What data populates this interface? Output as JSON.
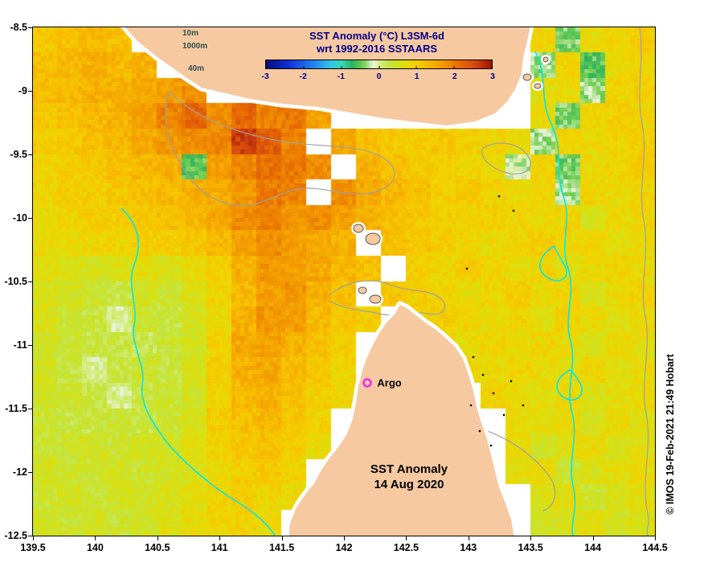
{
  "figure": {
    "legend_title_line1": "SST Anomaly (°C) L3SM-6d",
    "legend_title_line2": "wrt 1992-2016 SSTAARS",
    "annotation_title_line1": "SST Anomaly",
    "annotation_title_line2": "14 Aug 2020",
    "copyright": "© IMOS 19-Feb-2021 21:49 Hobart",
    "depth_labels": {
      "d10": "10m",
      "d1000": "1000m",
      "d40": "40m"
    }
  },
  "colors": {
    "land": "#f6c9a0",
    "coastline": "#5a5a5a",
    "title": "#00008b",
    "argo_marker": "#ff00ff",
    "contour_cyan": "#00e5ee",
    "contour_gray": "#a0a0a0",
    "missing_data": "#ffffff"
  },
  "chart_data": {
    "type": "heatmap",
    "title": "SST Anomaly (°C) L3SM-6d wrt 1992-2016 SSTAARS",
    "date": "14 Aug 2020",
    "xlim": [
      139.5,
      144.5
    ],
    "ylim": [
      -12.5,
      -8.5
    ],
    "x_ticks": [
      "139.5",
      "140",
      "140.5",
      "141",
      "141.5",
      "142",
      "142.5",
      "143",
      "143.5",
      "144",
      "144.5"
    ],
    "y_ticks": [
      "-8.5",
      "-9",
      "-9.5",
      "-10",
      "-10.5",
      "-11",
      "-11.5",
      "-12",
      "-12.5"
    ],
    "colorbar": {
      "ticks": [
        -3,
        -2,
        -1,
        0,
        1,
        2,
        3
      ],
      "stops": [
        [
          -3.0,
          "#0a0a78"
        ],
        [
          -2.4,
          "#1030d8"
        ],
        [
          -1.8,
          "#1f7af0"
        ],
        [
          -1.3,
          "#2fc0e8"
        ],
        [
          -1.0,
          "#35d8b8"
        ],
        [
          -0.7,
          "#2bb060"
        ],
        [
          -0.4,
          "#74cf52"
        ],
        [
          -0.15,
          "#e9f3da"
        ],
        [
          0.0,
          "#d8ed8a"
        ],
        [
          0.3,
          "#c2e43c"
        ],
        [
          0.6,
          "#d8e012"
        ],
        [
          0.9,
          "#f0d400"
        ],
        [
          1.2,
          "#f7c100"
        ],
        [
          1.5,
          "#f5a800"
        ],
        [
          1.8,
          "#f08f00"
        ],
        [
          2.1,
          "#e86f00"
        ],
        [
          2.5,
          "#d84a10"
        ],
        [
          3.0,
          "#9c1500"
        ]
      ]
    },
    "annotations": [
      {
        "label": "Argo",
        "lon": 142.19,
        "lat": -11.3,
        "marker": "circle",
        "color": "#ff00ff"
      }
    ],
    "grid": {
      "nx": 25,
      "ny": 20,
      "lon_min": 139.5,
      "lon_max": 144.5,
      "lat_min": -12.5,
      "lat_max": -8.5,
      "note": "SST anomaly (deg C), row 0 = northernmost (-8.5); null = land / missing data (white)",
      "values": [
        [
          1.1,
          1.2,
          1.3,
          1.2,
          null,
          null,
          null,
          null,
          null,
          null,
          null,
          null,
          null,
          null,
          null,
          null,
          null,
          null,
          null,
          null,
          0.9,
          -0.4,
          0.8,
          0.9,
          1.0
        ],
        [
          1.2,
          1.3,
          1.4,
          1.3,
          1.4,
          null,
          null,
          null,
          null,
          null,
          null,
          null,
          null,
          null,
          null,
          null,
          null,
          null,
          null,
          null,
          -0.3,
          0.9,
          -0.5,
          0.8,
          0.9
        ],
        [
          1.2,
          1.3,
          1.4,
          1.4,
          1.5,
          1.6,
          1.8,
          null,
          null,
          null,
          null,
          null,
          null,
          null,
          null,
          null,
          null,
          null,
          null,
          null,
          0.7,
          0.8,
          -0.3,
          0.9,
          1.0
        ],
        [
          1.1,
          1.2,
          1.3,
          1.4,
          1.6,
          1.9,
          2.2,
          1.8,
          2.2,
          1.9,
          2.0,
          1.6,
          null,
          null,
          null,
          null,
          null,
          null,
          null,
          null,
          0.8,
          -0.4,
          0.9,
          1.0,
          0.9
        ],
        [
          1.0,
          1.1,
          1.2,
          1.3,
          1.5,
          1.7,
          1.8,
          1.9,
          2.6,
          2.3,
          1.9,
          null,
          1.5,
          1.2,
          1.1,
          1.0,
          1.1,
          1.0,
          0.9,
          0.8,
          -0.3,
          0.9,
          0.8,
          0.9,
          1.0
        ],
        [
          0.9,
          1.0,
          1.1,
          1.2,
          1.3,
          1.4,
          -0.5,
          1.6,
          1.9,
          2.1,
          2.0,
          1.8,
          null,
          1.4,
          1.2,
          1.1,
          1.0,
          0.9,
          0.8,
          -0.2,
          0.9,
          -0.4,
          0.8,
          0.9,
          1.0
        ],
        [
          0.9,
          1.0,
          1.0,
          1.1,
          1.2,
          1.3,
          1.4,
          1.5,
          1.7,
          2.0,
          1.9,
          null,
          1.8,
          1.5,
          1.3,
          1.2,
          1.0,
          1.1,
          0.9,
          0.8,
          0.9,
          -0.3,
          0.9,
          0.8,
          0.9
        ],
        [
          0.8,
          0.9,
          1.0,
          1.0,
          1.1,
          1.2,
          1.3,
          1.5,
          1.8,
          1.9,
          1.7,
          1.8,
          1.6,
          1.4,
          1.2,
          1.1,
          1.0,
          0.9,
          1.0,
          0.9,
          0.8,
          0.9,
          0.6,
          0.8,
          0.9
        ],
        [
          0.8,
          0.8,
          0.9,
          0.9,
          1.0,
          1.0,
          1.1,
          1.3,
          1.6,
          1.8,
          1.6,
          1.5,
          1.4,
          null,
          1.2,
          1.1,
          1.0,
          0.9,
          0.8,
          0.9,
          1.0,
          0.8,
          0.9,
          0.7,
          0.8
        ],
        [
          0.7,
          0.6,
          0.5,
          0.6,
          0.7,
          0.6,
          0.8,
          1.0,
          1.4,
          1.7,
          1.6,
          1.5,
          1.3,
          1.2,
          null,
          1.0,
          0.9,
          1.0,
          0.9,
          0.8,
          0.9,
          0.7,
          0.8,
          0.9,
          0.8
        ],
        [
          0.6,
          0.5,
          0.4,
          0.3,
          0.5,
          0.4,
          0.6,
          0.9,
          1.3,
          1.6,
          1.7,
          1.4,
          1.2,
          null,
          1.1,
          1.0,
          0.9,
          0.8,
          0.9,
          1.0,
          0.8,
          0.9,
          0.6,
          0.8,
          0.9
        ],
        [
          0.6,
          0.4,
          0.3,
          0.0,
          0.4,
          0.3,
          0.5,
          0.8,
          1.4,
          1.7,
          1.6,
          1.3,
          1.1,
          1.0,
          null,
          0.9,
          1.0,
          0.9,
          0.8,
          0.9,
          0.7,
          0.9,
          0.8,
          0.7,
          0.8
        ],
        [
          0.5,
          0.4,
          0.3,
          0.3,
          0.2,
          0.4,
          0.5,
          0.9,
          1.5,
          1.6,
          1.4,
          1.2,
          1.0,
          null,
          null,
          null,
          0.9,
          0.8,
          0.9,
          0.8,
          0.9,
          0.8,
          0.6,
          0.8,
          0.7
        ],
        [
          0.5,
          0.3,
          0.0,
          0.3,
          0.4,
          0.3,
          0.6,
          1.0,
          1.4,
          1.5,
          1.3,
          1.1,
          0.9,
          null,
          null,
          null,
          null,
          0.9,
          0.8,
          0.9,
          0.8,
          0.7,
          0.9,
          0.7,
          0.8
        ],
        [
          0.5,
          0.4,
          0.3,
          0.0,
          0.3,
          0.4,
          0.5,
          0.9,
          1.3,
          1.4,
          1.2,
          1.0,
          0.9,
          null,
          null,
          null,
          null,
          null,
          0.9,
          0.8,
          0.7,
          0.8,
          0.6,
          0.7,
          0.8
        ],
        [
          0.4,
          0.3,
          0.3,
          0.4,
          0.3,
          0.4,
          0.6,
          1.0,
          1.2,
          1.3,
          1.1,
          0.9,
          null,
          null,
          null,
          null,
          null,
          null,
          null,
          0.8,
          0.7,
          0.8,
          0.6,
          0.8,
          0.7
        ],
        [
          0.4,
          0.4,
          0.5,
          0.4,
          0.5,
          0.5,
          0.7,
          0.9,
          1.1,
          1.2,
          1.0,
          0.8,
          null,
          null,
          null,
          null,
          null,
          null,
          null,
          0.8,
          0.5,
          0.7,
          0.8,
          0.6,
          0.7
        ],
        [
          0.5,
          0.4,
          0.4,
          0.5,
          0.4,
          0.5,
          0.6,
          0.8,
          1.0,
          1.1,
          0.9,
          null,
          null,
          null,
          null,
          null,
          null,
          null,
          null,
          0.7,
          0.8,
          0.4,
          0.6,
          0.7,
          0.8
        ],
        [
          0.4,
          0.5,
          0.4,
          0.5,
          0.5,
          0.6,
          0.7,
          0.9,
          1.0,
          0.9,
          0.8,
          null,
          null,
          null,
          null,
          null,
          null,
          null,
          null,
          null,
          0.6,
          0.7,
          0.4,
          0.6,
          0.7
        ],
        [
          0.5,
          0.4,
          0.5,
          0.4,
          0.5,
          0.6,
          0.8,
          0.9,
          0.9,
          0.8,
          null,
          null,
          null,
          null,
          null,
          null,
          null,
          null,
          null,
          null,
          0.5,
          0.6,
          0.7,
          0.5,
          0.6
        ]
      ]
    }
  }
}
